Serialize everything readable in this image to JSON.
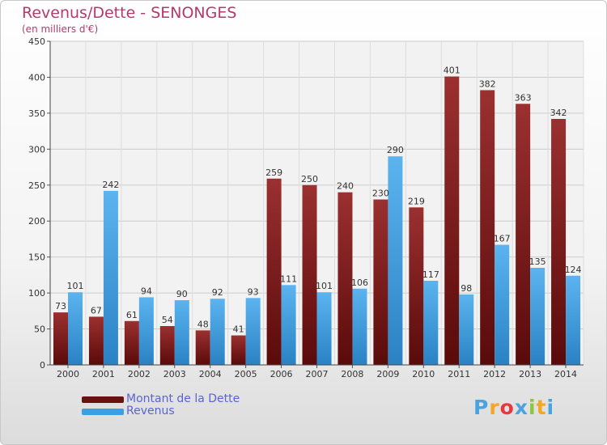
{
  "title": "Revenus/Dette - SENONGES",
  "subtitle": "(en milliers d'€)",
  "logo": {
    "text": "Proxiti",
    "letter_colors": [
      "#4aa3df",
      "#f5a623",
      "#e5393f",
      "#4aa3df",
      "#8dc63f",
      "#f5a623",
      "#4aa3df"
    ]
  },
  "colors": {
    "dette": "#7a1a1a",
    "revenus": "#3d9ee0",
    "axis_text": "#333333",
    "grid": "#cccccc"
  },
  "chart_data": {
    "type": "bar",
    "title": "Revenus/Dette - SENONGES",
    "subtitle": "(en milliers d'€)",
    "categories": [
      "2000",
      "2001",
      "2002",
      "2003",
      "2004",
      "2005",
      "2006",
      "2007",
      "2008",
      "2009",
      "2010",
      "2011",
      "2012",
      "2013",
      "2014"
    ],
    "series": [
      {
        "name": "Montant de la Dette",
        "values": [
          73,
          67,
          61,
          54,
          48,
          41,
          259,
          250,
          240,
          230,
          219,
          401,
          382,
          363,
          342
        ]
      },
      {
        "name": "Revenus",
        "values": [
          101,
          242,
          94,
          90,
          92,
          93,
          111,
          101,
          106,
          290,
          117,
          98,
          167,
          135,
          124
        ]
      }
    ],
    "ylim": [
      0,
      450
    ],
    "yticks": [
      0,
      50,
      100,
      150,
      200,
      250,
      300,
      350,
      400,
      450
    ],
    "grid": true,
    "legend": "bottom-left"
  }
}
